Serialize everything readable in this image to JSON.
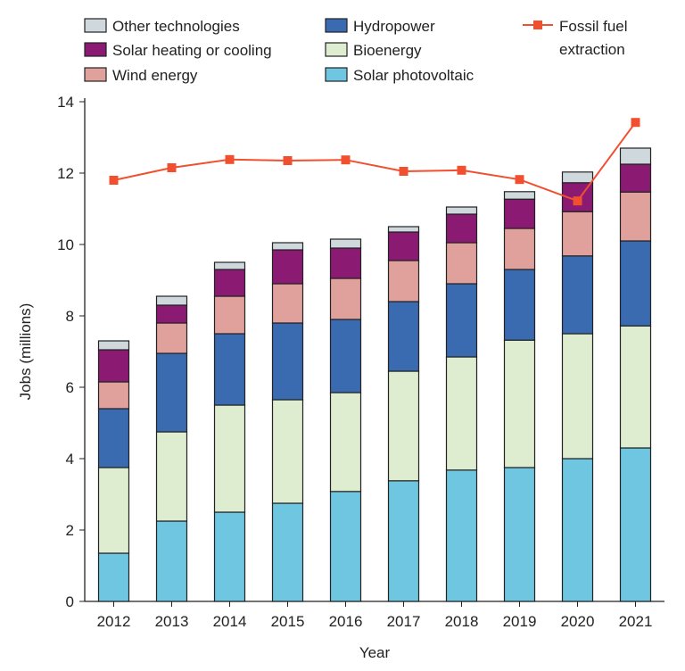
{
  "chart_data": {
    "type": "bar",
    "stacked": true,
    "xlabel": "Year",
    "ylabel": "Jobs (millions)",
    "ylim": [
      0,
      14
    ],
    "yticks": [
      0,
      2,
      4,
      6,
      8,
      10,
      12,
      14
    ],
    "grid": false,
    "legend_placement": "top",
    "categories": [
      "2012",
      "2013",
      "2014",
      "2015",
      "2016",
      "2017",
      "2018",
      "2019",
      "2020",
      "2021"
    ],
    "series": [
      {
        "name": "Solar photovoltaic",
        "color": "#6ec6e0",
        "values": [
          1.35,
          2.25,
          2.5,
          2.75,
          3.08,
          3.38,
          3.68,
          3.75,
          4.0,
          4.3
        ]
      },
      {
        "name": "Bioenergy",
        "color": "#deecd0",
        "values": [
          2.4,
          2.5,
          3.0,
          2.9,
          2.77,
          3.07,
          3.17,
          3.57,
          3.5,
          3.42
        ]
      },
      {
        "name": "Hydropower",
        "color": "#3a6ab0",
        "values": [
          1.65,
          2.2,
          2.0,
          2.15,
          2.05,
          1.95,
          2.05,
          1.98,
          2.18,
          2.38
        ]
      },
      {
        "name": "Wind energy",
        "color": "#e0a09c",
        "values": [
          0.75,
          0.85,
          1.05,
          1.1,
          1.15,
          1.15,
          1.15,
          1.15,
          1.24,
          1.37
        ]
      },
      {
        "name": "Solar heating or cooling",
        "color": "#8b1a73",
        "values": [
          0.9,
          0.5,
          0.75,
          0.95,
          0.85,
          0.8,
          0.8,
          0.82,
          0.81,
          0.78
        ]
      },
      {
        "name": "Other technologies",
        "color": "#cfd8dc",
        "values": [
          0.25,
          0.25,
          0.2,
          0.2,
          0.25,
          0.15,
          0.2,
          0.21,
          0.3,
          0.45
        ]
      }
    ],
    "line_series": {
      "name": "Fossil fuel extraction",
      "color": "#f0502f",
      "values": [
        11.8,
        12.15,
        12.38,
        12.35,
        12.37,
        12.05,
        12.08,
        11.82,
        11.22,
        13.42
      ]
    }
  }
}
